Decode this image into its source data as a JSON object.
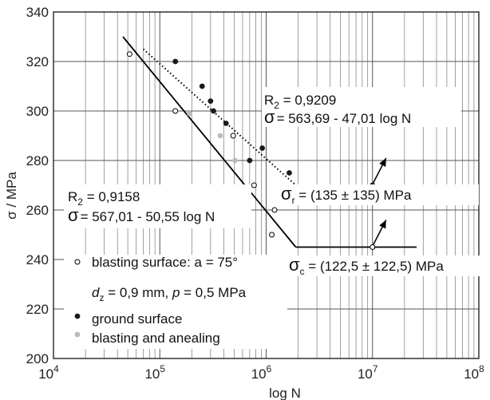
{
  "chart_data": {
    "type": "scatter",
    "xlabel": "log N",
    "ylabel": "σ / MPa",
    "x_scale": "log",
    "xlim": [
      10000,
      100000000
    ],
    "ylim": [
      200,
      340
    ],
    "x_tick_labels": [
      {
        "base": "10",
        "exp": "4",
        "value": 10000
      },
      {
        "base": "10",
        "exp": "5",
        "value": 100000
      },
      {
        "base": "10",
        "exp": "6",
        "value": 1000000
      },
      {
        "base": "10",
        "exp": "7",
        "value": 10000000
      },
      {
        "base": "10",
        "exp": "8",
        "value": 100000000
      }
    ],
    "y_ticks": [
      200,
      220,
      240,
      260,
      280,
      300,
      320,
      340
    ],
    "grid": "log-minor vertical, major horizontal",
    "series": [
      {
        "name": "blasting surface: a = 75°",
        "legend_line2": {
          "d": "d",
          "sub": "z",
          "text1": " = 0,9 mm, ",
          "p": "p",
          "text2": " = 0,5 MPa"
        },
        "marker": "open-circle",
        "color": "#000000",
        "points": [
          {
            "x": 52000,
            "y": 323
          },
          {
            "x": 140000,
            "y": 300
          },
          {
            "x": 490000,
            "y": 290
          },
          {
            "x": 770000,
            "y": 270
          },
          {
            "x": 1130000,
            "y": 250
          },
          {
            "x": 1200000,
            "y": 260
          },
          {
            "x": 10000000,
            "y": 245
          }
        ]
      },
      {
        "name": "ground surface",
        "marker": "filled-circle",
        "color": "#1a1a1a",
        "points": [
          {
            "x": 140000,
            "y": 320
          },
          {
            "x": 250000,
            "y": 310
          },
          {
            "x": 300000,
            "y": 304
          },
          {
            "x": 320000,
            "y": 300
          },
          {
            "x": 420000,
            "y": 295
          },
          {
            "x": 700000,
            "y": 280
          },
          {
            "x": 920000,
            "y": 285
          },
          {
            "x": 1650000,
            "y": 275
          },
          {
            "x": 10000000,
            "y": 270
          }
        ]
      },
      {
        "name": "blasting and anealing",
        "marker": "filled-circle",
        "color": "#bbbbbb",
        "points": [
          {
            "x": 190000,
            "y": 299
          },
          {
            "x": 370000,
            "y": 290
          },
          {
            "x": 510000,
            "y": 280
          }
        ]
      }
    ],
    "fit_lines": [
      {
        "style": "solid",
        "segments": [
          [
            {
              "x": 45000,
              "y": 330
            },
            {
              "x": 1900000,
              "y": 245
            }
          ],
          [
            {
              "x": 1900000,
              "y": 245
            },
            {
              "x": 26000000,
              "y": 245
            }
          ]
        ]
      },
      {
        "style": "dotted",
        "segments": [
          [
            {
              "x": 70000,
              "y": 325
            },
            {
              "x": 1900000,
              "y": 270
            }
          ],
          [
            {
              "x": 1900000,
              "y": 270
            },
            {
              "x": 21000000,
              "y": 269
            }
          ]
        ]
      }
    ],
    "annotations": {
      "fit_top": {
        "r_base": "R",
        "r_sub": "2",
        "r_value": " = 0,9209",
        "sigma": "σ",
        "equation": "= 563,69 - 47,01 log N"
      },
      "fit_bottom": {
        "r_base": "R",
        "r_sub": "2",
        "r_value": " = 0,9158",
        "sigma": "σ",
        "equation": "= 567,01 - 50,55 log N"
      },
      "sigma_r": {
        "sigma": "σ",
        "sub": "r",
        "text": " = (135 ± 135) MPa"
      },
      "sigma_c": {
        "sigma": "σ",
        "sub": "c",
        "text": " = (122,5 ± 122,5) MPa"
      }
    },
    "runout_arrows": [
      {
        "from": {
          "x": 10000000,
          "y": 270
        },
        "direction": "up-right"
      },
      {
        "from": {
          "x": 10000000,
          "y": 245
        },
        "direction": "up-right"
      }
    ]
  }
}
